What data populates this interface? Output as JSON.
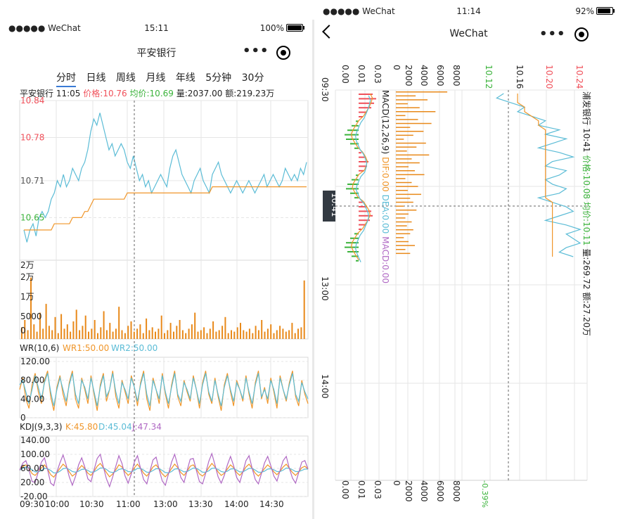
{
  "left": {
    "status": {
      "carrier": "●●●●● WeChat",
      "time": "15:11",
      "battery": "100%"
    },
    "nav": {
      "title": "平安银行",
      "menu": "•••"
    },
    "tabs": [
      {
        "label": "分时",
        "active": true
      },
      {
        "label": "日线",
        "active": false
      },
      {
        "label": "周线",
        "active": false
      },
      {
        "label": "月线",
        "active": false
      },
      {
        "label": "年线",
        "active": false
      },
      {
        "label": "5分钟",
        "active": false
      },
      {
        "label": "30分",
        "active": false
      }
    ],
    "info": {
      "name": "平安银行",
      "time": "11:05",
      "price_label": "价格:",
      "price": "10.76",
      "avg_label": "均价:",
      "avg": "10.69",
      "vol_label": "量:",
      "vol": "2037.00",
      "amt_label": "额:",
      "amt": "219.23万"
    },
    "wr_legend": {
      "name": "WR(10,6)",
      "wr1": "WR1:50.00",
      "wr2": "WR2:50.00"
    },
    "kdj_legend": {
      "name": "KDJ(9,3,3)",
      "k": "K:45.80",
      "d": "D:45.04",
      "j": "J:47.34"
    }
  },
  "right": {
    "status": {
      "carrier": "●●●●● WeChat",
      "time": "11:14",
      "battery": "92%"
    },
    "nav": {
      "title": "WeChat",
      "menu": "•••"
    },
    "info": {
      "name": "浦发银行",
      "time": "10:41",
      "price_label": "价格:",
      "price": "10.08",
      "avg_label": "均价:",
      "avg": "10.11",
      "vol_label": "量:",
      "vol": "269.72",
      "amt_label": "额:",
      "amt": "27.20万"
    },
    "macd_legend": {
      "name": "MACD(12,26,9)",
      "dif": "DIF:0.00",
      "dea": "DEA:0.00",
      "macd": "MACD:0.00"
    },
    "crosshair_time": "10:41",
    "bottom_percent": "-0.39%"
  },
  "colors": {
    "up": "#f0505a",
    "down": "#3bb33b",
    "price_line": "#5bbcd6",
    "avg_line": "#f0962a",
    "volume": "#e8891a",
    "purple": "#b069c4",
    "grid": "#e6e6e6"
  },
  "chart_data": [
    {
      "type": "line",
      "title": "平安银行 分时",
      "x_ticks": [
        "09:30",
        "10:00",
        "10:30",
        "11:00",
        "13:00",
        "13:30",
        "14:00",
        "14:30"
      ],
      "y_ticks": [
        "10.84",
        "10.78",
        "10.71",
        "10.65"
      ],
      "ylim": [
        10.59,
        10.84
      ],
      "series": [
        {
          "name": "价格",
          "values": [
            10.63,
            10.61,
            10.63,
            10.64,
            10.62,
            10.65,
            10.66,
            10.65,
            10.66,
            10.68,
            10.69,
            10.71,
            10.7,
            10.72,
            10.7,
            10.71,
            10.73,
            10.72,
            10.71,
            10.73,
            10.74,
            10.76,
            10.79,
            10.81,
            10.8,
            10.82,
            10.8,
            10.78,
            10.76,
            10.77,
            10.75,
            10.76,
            10.77,
            10.76,
            10.74,
            10.73,
            10.75,
            10.73,
            10.71,
            10.72,
            10.7,
            10.71,
            10.69,
            10.7,
            10.71,
            10.72,
            10.71,
            10.7,
            10.73,
            10.75,
            10.76,
            10.74,
            10.72,
            10.71,
            10.7,
            10.69,
            10.71,
            10.72,
            10.73,
            10.71,
            10.7,
            10.69,
            10.72,
            10.73,
            10.74,
            10.72,
            10.71,
            10.7,
            10.69,
            10.7,
            10.71,
            10.7,
            10.69,
            10.7,
            10.71,
            10.7,
            10.69,
            10.7,
            10.71,
            10.72,
            10.7,
            10.71,
            10.72,
            10.71,
            10.7,
            10.71,
            10.73,
            10.72,
            10.71,
            10.72,
            10.71,
            10.73,
            10.72,
            10.74
          ]
        },
        {
          "name": "均价",
          "values": [
            10.63,
            10.63,
            10.63,
            10.63,
            10.63,
            10.63,
            10.63,
            10.63,
            10.63,
            10.63,
            10.64,
            10.64,
            10.64,
            10.64,
            10.64,
            10.64,
            10.65,
            10.65,
            10.65,
            10.65,
            10.66,
            10.66,
            10.67,
            10.68,
            10.68,
            10.68,
            10.68,
            10.68,
            10.68,
            10.68,
            10.68,
            10.68,
            10.68,
            10.68,
            10.69,
            10.69,
            10.69,
            10.69,
            10.69,
            10.69,
            10.69,
            10.69,
            10.69,
            10.69,
            10.69,
            10.69,
            10.69,
            10.69,
            10.69,
            10.69,
            10.69,
            10.69,
            10.69,
            10.69,
            10.69,
            10.69,
            10.69,
            10.69,
            10.69,
            10.69,
            10.69,
            10.69,
            10.7,
            10.7,
            10.7,
            10.7,
            10.7,
            10.7,
            10.7,
            10.7,
            10.7,
            10.7,
            10.7,
            10.7,
            10.7,
            10.7,
            10.7,
            10.7,
            10.7,
            10.7,
            10.7,
            10.7,
            10.7,
            10.7,
            10.7,
            10.7,
            10.7,
            10.7,
            10.7,
            10.7,
            10.7,
            10.7,
            10.7,
            10.7
          ]
        }
      ]
    },
    {
      "type": "bar",
      "title": "平安银行 成交量",
      "y_ticks": [
        "2万",
        "2万",
        "1万",
        "5000",
        "0"
      ],
      "ylim": [
        0,
        25000
      ],
      "values": [
        4000,
        6500,
        3000,
        21000,
        5000,
        2500,
        9000,
        3500,
        12000,
        4500,
        3000,
        7500,
        2000,
        8500,
        3500,
        5000,
        2500,
        6000,
        10000,
        3000,
        4500,
        8000,
        2500,
        3500,
        6500,
        2000,
        4000,
        9500,
        3000,
        5500,
        2500,
        3500,
        11000,
        3000,
        2000,
        4500,
        6000,
        2500,
        3500,
        5000,
        2000,
        7000,
        3000,
        4000,
        2500,
        3500,
        8000,
        2000,
        3000,
        5500,
        2500,
        4500,
        6500,
        3000,
        2000,
        3500,
        5000,
        9000,
        2500,
        3000,
        4000,
        2000,
        3500,
        6000,
        2500,
        3000,
        4500,
        7500,
        2000,
        3000,
        2500,
        4000,
        5500,
        3000,
        2500,
        3500,
        2000,
        4500,
        3000,
        6500,
        2500,
        3500,
        5000,
        2000,
        3000,
        4500,
        3500,
        2500,
        3000,
        5500,
        2000,
        3500,
        4000,
        20000
      ]
    },
    {
      "type": "line",
      "title": "WR(10,6)",
      "y_ticks": [
        "120.00",
        "80.00",
        "40.00",
        "0"
      ],
      "ylim": [
        0,
        120
      ],
      "series": [
        {
          "name": "WR1",
          "values": [
            60,
            85,
            40,
            20,
            70,
            95,
            55,
            30,
            80,
            100,
            45,
            15,
            65,
            90,
            50,
            25,
            75,
            100,
            40,
            20,
            85,
            60,
            30,
            90,
            50,
            15,
            70,
            95,
            35,
            60,
            100,
            45,
            20,
            80,
            55,
            30,
            90,
            65,
            25,
            75,
            100,
            40,
            15,
            85,
            60,
            30,
            95,
            50,
            20,
            70,
            100,
            45,
            25,
            80,
            55,
            35,
            90,
            60,
            20,
            75,
            100,
            50,
            30,
            85,
            45,
            15,
            70,
            95,
            55,
            25,
            80,
            60,
            35,
            90,
            50,
            20,
            75,
            100,
            40,
            65,
            30,
            85,
            55,
            20,
            90,
            60,
            35,
            75,
            100,
            45,
            25,
            80,
            50,
            30
          ]
        },
        {
          "name": "WR2",
          "values": [
            70,
            80,
            55,
            30,
            60,
            90,
            65,
            40,
            75,
            95,
            55,
            25,
            60,
            85,
            60,
            35,
            70,
            95,
            50,
            30,
            80,
            65,
            40,
            85,
            55,
            25,
            65,
            90,
            45,
            60,
            95,
            55,
            30,
            75,
            60,
            40,
            85,
            65,
            35,
            70,
            95,
            50,
            25,
            80,
            60,
            40,
            90,
            55,
            30,
            65,
            95,
            50,
            35,
            75,
            60,
            40,
            85,
            60,
            30,
            70,
            95,
            55,
            35,
            80,
            50,
            25,
            65,
            90,
            60,
            35,
            75,
            60,
            40,
            85,
            55,
            30,
            70,
            95,
            45,
            60,
            40,
            80,
            60,
            30,
            85,
            60,
            40,
            70,
            95,
            50,
            35,
            75,
            55,
            40
          ]
        }
      ]
    },
    {
      "type": "line",
      "title": "KDJ(9,3,3)",
      "x_ticks": [
        "09:30",
        "10:00",
        "10:30",
        "11:00",
        "13:00",
        "13:30",
        "14:00",
        "14:30"
      ],
      "y_ticks": [
        "140.00",
        "100.00",
        "60.00",
        "20.00",
        "-20.00"
      ],
      "ylim": [
        -20,
        140
      ],
      "series": [
        {
          "name": "K",
          "values": [
            55,
            65,
            70,
            60,
            45,
            40,
            50,
            62,
            70,
            58,
            42,
            35,
            48,
            60,
            72,
            64,
            50,
            38,
            45,
            58,
            68,
            60,
            46,
            40,
            52,
            66,
            74,
            62,
            48,
            36,
            44,
            56,
            70,
            64,
            50,
            40,
            48,
            62,
            72,
            60,
            46,
            38,
            50,
            64,
            70,
            58,
            44,
            36,
            46,
            60,
            72,
            62,
            48,
            40,
            52,
            66,
            70,
            58,
            44,
            38,
            48,
            62,
            74,
            64,
            50,
            40,
            46,
            58,
            70,
            62,
            48,
            40,
            50,
            64,
            72,
            60,
            46,
            38,
            48,
            60,
            70,
            62,
            50,
            42,
            52,
            64,
            72,
            60,
            48,
            40,
            50,
            62,
            66,
            58
          ]
        },
        {
          "name": "D",
          "values": [
            55,
            60,
            64,
            62,
            56,
            50,
            50,
            54,
            60,
            59,
            54,
            47,
            47,
            52,
            59,
            61,
            57,
            51,
            49,
            52,
            57,
            58,
            54,
            49,
            50,
            55,
            61,
            61,
            57,
            50,
            48,
            51,
            57,
            59,
            56,
            51,
            50,
            54,
            60,
            60,
            55,
            49,
            49,
            54,
            59,
            59,
            54,
            48,
            47,
            51,
            58,
            59,
            55,
            50,
            51,
            56,
            61,
            60,
            55,
            49,
            49,
            53,
            60,
            61,
            57,
            51,
            49,
            52,
            58,
            59,
            55,
            50,
            50,
            55,
            60,
            60,
            55,
            49,
            49,
            52,
            58,
            59,
            56,
            51,
            51,
            55,
            61,
            60,
            56,
            51,
            51,
            54,
            58,
            58
          ]
        },
        {
          "name": "J",
          "values": [
            55,
            75,
            82,
            56,
            23,
            20,
            50,
            78,
            90,
            56,
            18,
            11,
            50,
            76,
            98,
            70,
            36,
            12,
            37,
            70,
            90,
            64,
            30,
            22,
            56,
            88,
            100,
            64,
            30,
            8,
            36,
            66,
            96,
            74,
            38,
            18,
            44,
            78,
            96,
            60,
            28,
            16,
            52,
            84,
            92,
            56,
            24,
            12,
            44,
            78,
            100,
            68,
            34,
            20,
            54,
            86,
            88,
            54,
            22,
            16,
            46,
            80,
            102,
            70,
            36,
            18,
            40,
            70,
            94,
            68,
            34,
            20,
            50,
            82,
            96,
            60,
            28,
            16,
            46,
            76,
            94,
            68,
            38,
            24,
            54,
            82,
            94,
            60,
            32,
            18,
            48,
            78,
            82,
            58
          ]
        }
      ]
    },
    {
      "type": "line",
      "title": "浦发银行 分时",
      "x_ticks": [
        "09:30",
        "13:00",
        "14:00"
      ],
      "y_ticks": [
        "10.24",
        "10.20",
        "10.16",
        "10.12"
      ],
      "ylim": [
        10.06,
        10.24
      ],
      "series": [
        {
          "name": "价格",
          "values": [
            10.18,
            10.19,
            10.17,
            10.15,
            10.16,
            10.14,
            10.12,
            10.13,
            10.1,
            10.12,
            10.09,
            10.11,
            10.13,
            10.1,
            10.08,
            10.11,
            10.12,
            10.09,
            10.1,
            10.12,
            10.11,
            10.09,
            10.1,
            10.13,
            10.11,
            10.09,
            10.08,
            10.1,
            10.12,
            10.09,
            10.07,
            10.09,
            10.08,
            10.07,
            10.09,
            10.1,
            10.08
          ]
        },
        {
          "name": "均价",
          "values": [
            10.16,
            10.16,
            10.16,
            10.15,
            10.15,
            10.14,
            10.13,
            10.13,
            10.12,
            10.12,
            10.12,
            10.12,
            10.12,
            10.12,
            10.12,
            10.12,
            10.12,
            10.12,
            10.12,
            10.12,
            10.12,
            10.12,
            10.12,
            10.12,
            10.11,
            10.11,
            10.11,
            10.11,
            10.11,
            10.11,
            10.11,
            10.11,
            10.11,
            10.11,
            10.11,
            10.11,
            10.11
          ]
        }
      ]
    },
    {
      "type": "bar",
      "title": "浦发银行 成交量",
      "y_ticks": [
        "8000",
        "6000",
        "4000",
        "2000",
        "0"
      ],
      "ylim": [
        0,
        8000
      ],
      "values": [
        6500,
        2500,
        4000,
        1500,
        3000,
        5000,
        1200,
        2800,
        4500,
        1800,
        3500,
        2200,
        1000,
        3800,
        2600,
        1400,
        4200,
        2000,
        3000,
        1600,
        2400,
        3600,
        1200,
        2000,
        2800,
        1500,
        3200,
        1800,
        2200,
        1000,
        2600,
        1600,
        1200,
        2000,
        1400,
        2200,
        1800,
        1000,
        1600,
        2400,
        1200,
        1800
      ]
    },
    {
      "type": "bar",
      "title": "MACD(12,26,9)",
      "y_ticks": [
        "0.03",
        "0.01",
        "0.00"
      ],
      "ylim": [
        -0.03,
        0.03
      ],
      "values": [
        0.02,
        0.025,
        0.022,
        0.018,
        0.012,
        0.006,
        -0.004,
        -0.01,
        -0.016,
        -0.02,
        -0.018,
        -0.012,
        -0.006,
        0.004,
        0.01,
        0.014,
        0.012,
        0.008,
        -0.004,
        -0.01,
        -0.016,
        -0.018,
        -0.012,
        -0.006,
        0.006,
        0.012,
        0.018,
        0.02,
        0.016,
        0.01,
        0.004,
        -0.006,
        -0.012,
        -0.018,
        -0.02,
        -0.016,
        -0.01,
        -0.004
      ]
    }
  ]
}
